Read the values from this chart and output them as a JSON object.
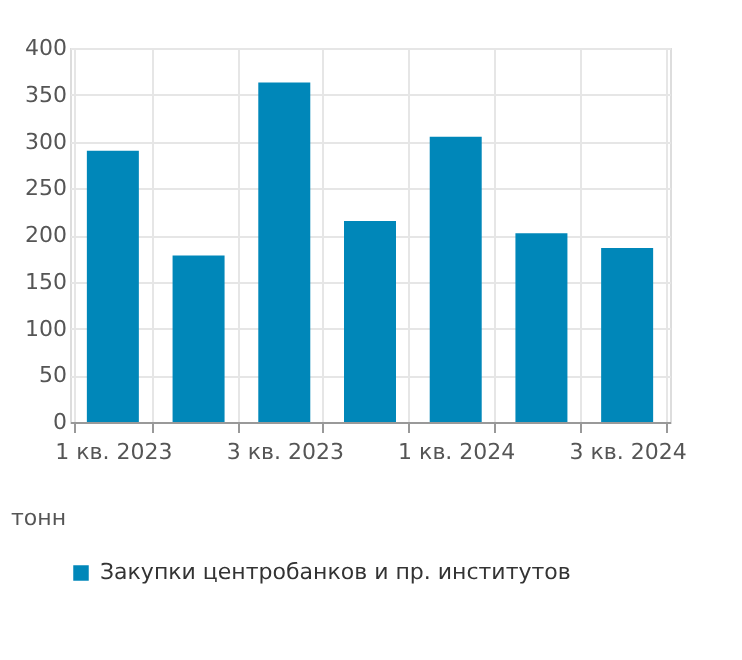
{
  "chart_data": {
    "type": "bar",
    "ylabel": "тонн",
    "categories": [
      "1 кв. 2023",
      null,
      "3 кв. 2023",
      null,
      "1 кв. 2024",
      null,
      "3 кв. 2024"
    ],
    "series": [
      {
        "name": "Закупки центробанков и пр. институтов",
        "color": "#0087b9",
        "values": [
          290,
          178,
          363,
          215,
          305,
          202,
          186
        ]
      }
    ],
    "ylim": [
      0,
      400
    ],
    "yticks": [
      0,
      50,
      100,
      150,
      200,
      250,
      300,
      350,
      400
    ],
    "grid": true,
    "legend": "bottom"
  }
}
